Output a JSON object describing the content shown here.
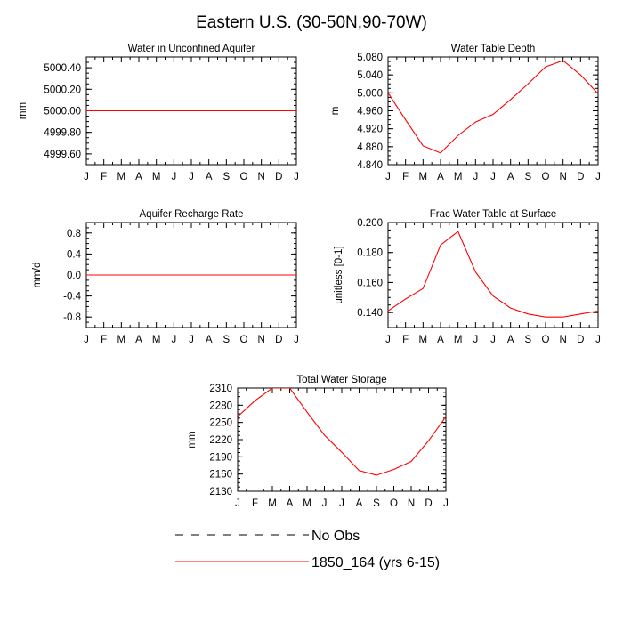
{
  "figure": {
    "title": "Eastern U.S. (30-50N,90-70W)"
  },
  "legend": {
    "entries": [
      {
        "label": "No Obs",
        "style": "dashed",
        "color": "#000000"
      },
      {
        "label": "1850_164 (yrs 6-15)",
        "style": "solid",
        "color": "#ff0000"
      }
    ]
  },
  "chart_data": [
    {
      "type": "line",
      "title": "Water in Unconfined Aquifer",
      "ylabel": "mm",
      "xlabel": "",
      "categories": [
        "J",
        "F",
        "M",
        "A",
        "M",
        "J",
        "J",
        "A",
        "S",
        "O",
        "N",
        "D",
        "J"
      ],
      "ylim": [
        4999.5,
        5000.5
      ],
      "yticks": [
        4999.6,
        4999.8,
        5000.0,
        5000.2,
        5000.4
      ],
      "yticklabels": [
        "4999.60",
        "4999.80",
        "5000.00",
        "5000.20",
        "5000.40"
      ],
      "series": [
        {
          "name": "1850_164 (yrs 6-15)",
          "color": "#ff0000",
          "values": [
            5000,
            5000,
            5000,
            5000,
            5000,
            5000,
            5000,
            5000,
            5000,
            5000,
            5000,
            5000,
            5000
          ]
        }
      ]
    },
    {
      "type": "line",
      "title": "Water Table Depth",
      "ylabel": "m",
      "xlabel": "",
      "categories": [
        "J",
        "F",
        "M",
        "A",
        "M",
        "J",
        "J",
        "A",
        "S",
        "O",
        "N",
        "D",
        "J"
      ],
      "ylim": [
        4.84,
        5.08
      ],
      "yticks": [
        4.84,
        4.88,
        4.92,
        4.96,
        5.0,
        5.04,
        5.08
      ],
      "yticklabels": [
        "4.840",
        "4.880",
        "4.920",
        "4.960",
        "5.000",
        "5.040",
        "5.080"
      ],
      "series": [
        {
          "name": "1850_164 (yrs 6-15)",
          "color": "#ff0000",
          "values": [
            5.0,
            4.94,
            4.882,
            4.866,
            4.905,
            4.935,
            4.952,
            4.985,
            5.02,
            5.058,
            5.072,
            5.04,
            4.998
          ]
        }
      ]
    },
    {
      "type": "line",
      "title": "Aquifer Recharge Rate",
      "ylabel": "mm/d",
      "xlabel": "",
      "categories": [
        "J",
        "F",
        "M",
        "A",
        "M",
        "J",
        "J",
        "A",
        "S",
        "O",
        "N",
        "D",
        "J"
      ],
      "ylim": [
        -1.0,
        1.0
      ],
      "yticks": [
        -0.8,
        -0.4,
        0.0,
        0.4,
        0.8
      ],
      "yticklabels": [
        "-0.8",
        "-0.4",
        "0.0",
        "0.4",
        "0.8"
      ],
      "series": [
        {
          "name": "1850_164 (yrs 6-15)",
          "color": "#ff0000",
          "values": [
            0,
            0,
            0,
            0,
            0,
            0,
            0,
            0,
            0,
            0,
            0,
            0,
            0
          ]
        }
      ]
    },
    {
      "type": "line",
      "title": "Frac Water Table at Surface",
      "ylabel": "unitless [0-1]",
      "xlabel": "",
      "categories": [
        "J",
        "F",
        "M",
        "A",
        "M",
        "J",
        "J",
        "A",
        "S",
        "O",
        "N",
        "D",
        "J"
      ],
      "ylim": [
        0.13,
        0.2
      ],
      "yticks": [
        0.14,
        0.16,
        0.18,
        0.2
      ],
      "yticklabels": [
        "0.140",
        "0.160",
        "0.180",
        "0.200"
      ],
      "series": [
        {
          "name": "1850_164 (yrs 6-15)",
          "color": "#ff0000",
          "values": [
            0.141,
            0.149,
            0.156,
            0.185,
            0.194,
            0.167,
            0.151,
            0.143,
            0.139,
            0.137,
            0.137,
            0.139,
            0.141
          ]
        }
      ]
    },
    {
      "type": "line",
      "title": "Total Water Storage",
      "ylabel": "mm",
      "xlabel": "",
      "categories": [
        "J",
        "F",
        "M",
        "A",
        "M",
        "J",
        "J",
        "A",
        "S",
        "O",
        "N",
        "D",
        "J"
      ],
      "ylim": [
        2130,
        2310
      ],
      "yticks": [
        2130,
        2160,
        2190,
        2220,
        2250,
        2280,
        2310
      ],
      "yticklabels": [
        "2130",
        "2160",
        "2190",
        "2220",
        "2250",
        "2280",
        "2310"
      ],
      "series": [
        {
          "name": "1850_164 (yrs 6-15)",
          "color": "#ff0000",
          "values": [
            2260,
            2288,
            2310,
            2310,
            2268,
            2228,
            2198,
            2166,
            2158,
            2168,
            2182,
            2218,
            2260
          ]
        }
      ]
    }
  ]
}
